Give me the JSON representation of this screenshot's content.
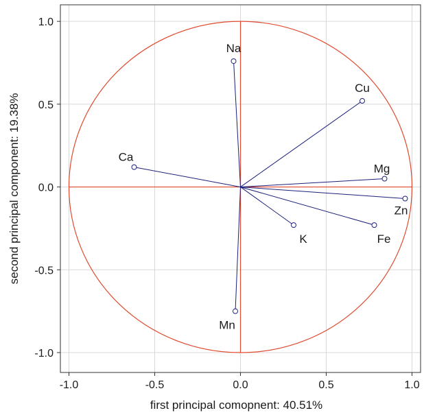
{
  "chart_data": {
    "type": "scatter",
    "title": "",
    "xlabel": "first principal comopnent: 40.51%",
    "ylabel": "second principal component: 19.38%",
    "xlim": [
      -1.05,
      1.05
    ],
    "ylim": [
      -1.12,
      1.1
    ],
    "xticks": [
      -1.0,
      -0.5,
      0.0,
      0.5,
      1.0
    ],
    "yticks": [
      -1.0,
      -0.5,
      0.0,
      0.5,
      1.0
    ],
    "xtick_labels": [
      "-1.0",
      "-0.5",
      "0.0",
      "0.5",
      "1.0"
    ],
    "ytick_labels": [
      "-1.0",
      "-0.5",
      "0.0",
      "0.5",
      "1.0"
    ],
    "grid": true,
    "unit_circle": true,
    "points": [
      {
        "name": "Na",
        "x": -0.04,
        "y": 0.76
      },
      {
        "name": "Cu",
        "x": 0.71,
        "y": 0.52
      },
      {
        "name": "Ca",
        "x": -0.62,
        "y": 0.12
      },
      {
        "name": "Mg",
        "x": 0.84,
        "y": 0.05
      },
      {
        "name": "Zn",
        "x": 0.96,
        "y": -0.07
      },
      {
        "name": "K",
        "x": 0.31,
        "y": -0.23
      },
      {
        "name": "Fe",
        "x": 0.78,
        "y": -0.23
      },
      {
        "name": "Mn",
        "x": -0.03,
        "y": -0.75
      }
    ],
    "colors": {
      "circle": "#e04a2f",
      "axes_lines": "#e04a2f",
      "vectors": "#1a1f7a",
      "grid": "#d9d9d9",
      "frame": "#333333"
    }
  }
}
